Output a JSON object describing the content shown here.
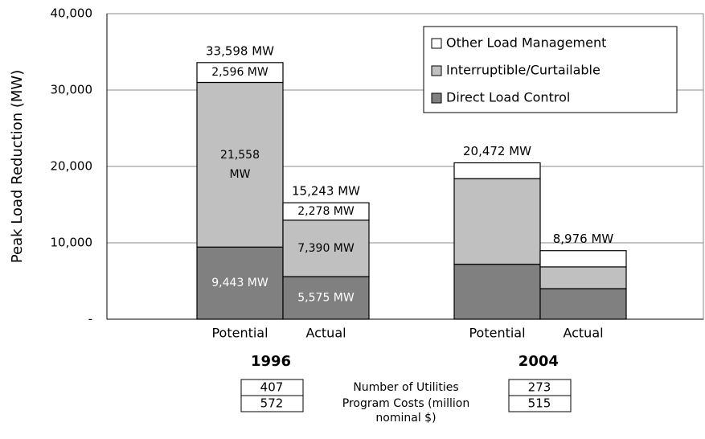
{
  "chart_data": {
    "type": "bar",
    "stacked": true,
    "ylabel": "Peak Load Reduction (MW)",
    "categories": [
      "Potential",
      "Actual",
      "Potential",
      "Actual"
    ],
    "groups": [
      "1996",
      "2004"
    ],
    "series": [
      {
        "name": "Direct Load Control",
        "color": "#808080",
        "values": [
          9443,
          5575,
          7200,
          4000
        ],
        "value_labels": [
          "9,443 MW",
          "5,575 MW",
          null,
          null
        ]
      },
      {
        "name": "Interruptible/Curtailable",
        "color": "#c0c0c0",
        "values": [
          21558,
          7390,
          11200,
          2850
        ],
        "value_labels": [
          "21,558 MW",
          "7,390 MW",
          null,
          null
        ]
      },
      {
        "name": "Other Load Management",
        "color": "#ffffff",
        "values": [
          2596,
          2278,
          2072,
          2126
        ],
        "value_labels": [
          "2,596 MW",
          "2,278 MW",
          null,
          null
        ]
      }
    ],
    "totals": [
      33598,
      15243,
      20472,
      8976
    ],
    "total_labels": [
      "33,598 MW",
      "15,243 MW",
      "20,472 MW",
      "8,976 MW"
    ],
    "ylim": [
      0,
      40000
    ],
    "yticks": [
      {
        "value": 0,
        "label": "-"
      },
      {
        "value": 10000,
        "label": "10,000"
      },
      {
        "value": 20000,
        "label": "20,000"
      },
      {
        "value": 30000,
        "label": "30,000"
      },
      {
        "value": 40000,
        "label": "40,000"
      }
    ],
    "grid": true,
    "legend": "upper right"
  },
  "table": {
    "rows": [
      [
        "407",
        "Number of Utilities",
        "273"
      ],
      [
        "572",
        "Program Costs (million nominal $)",
        "515"
      ]
    ]
  }
}
